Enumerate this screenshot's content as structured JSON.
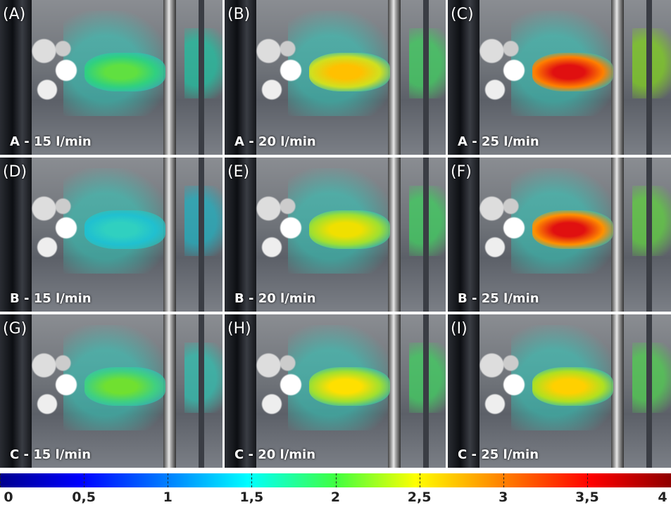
{
  "panels": [
    {
      "tag": "(A)",
      "caption": "A - 15 l/min"
    },
    {
      "tag": "(B)",
      "caption": "A - 20 l/min"
    },
    {
      "tag": "(C)",
      "caption": "A - 25 l/min"
    },
    {
      "tag": "(D)",
      "caption": "B - 15 l/min"
    },
    {
      "tag": "(E)",
      "caption": "B - 20 l/min"
    },
    {
      "tag": "(F)",
      "caption": "B - 25 l/min"
    },
    {
      "tag": "(G)",
      "caption": "C - 15 l/min"
    },
    {
      "tag": "(H)",
      "caption": "C - 20 l/min"
    },
    {
      "tag": "(I)",
      "caption": "C - 25 l/min"
    }
  ],
  "colorbar": {
    "ticks": [
      0,
      {
        "value": 0.5,
        "label": "0,5"
      },
      1,
      {
        "value": 1.5,
        "label": "1,5"
      },
      2,
      {
        "value": 2.5,
        "label": "2,5"
      },
      3,
      {
        "value": 3.5,
        "label": "3,5"
      },
      4
    ]
  }
}
